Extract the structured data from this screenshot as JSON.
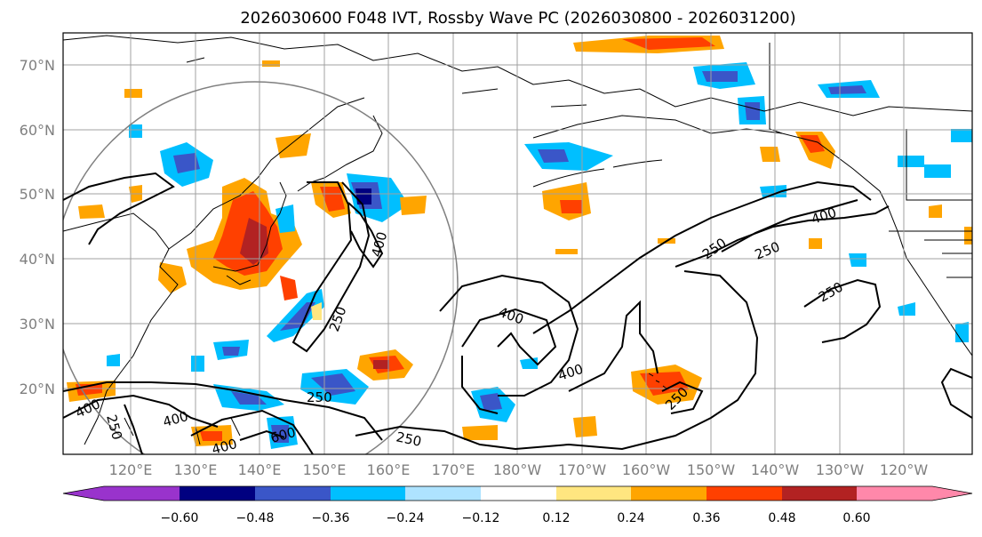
{
  "title": "2026030600 F048 IVT, Rossby Wave PC (2026030800 - 2026031200)",
  "lon_labels": [
    "120°E",
    "130°E",
    "140°E",
    "150°E",
    "160°E",
    "170°E",
    "180°W",
    "170°W",
    "160°W",
    "150°W",
    "140°W",
    "130°W",
    "120°W"
  ],
  "lat_labels": [
    "70°N",
    "60°N",
    "50°N",
    "40°N",
    "30°N",
    "20°N"
  ],
  "colors": {
    "levels": [
      {
        "name": "below -0.60",
        "hex": "#9933cc"
      },
      {
        "name": "-0.60 to -0.48",
        "hex": "#000080"
      },
      {
        "name": "-0.48 to -0.36",
        "hex": "#3a56c8"
      },
      {
        "name": "-0.36 to -0.24",
        "hex": "#00bfff"
      },
      {
        "name": "-0.24 to -0.12",
        "hex": "#aee3ff"
      },
      {
        "name": "-0.12 to 0.12",
        "hex": "#ffffff"
      },
      {
        "name": "0.12 to 0.24",
        "hex": "#ffe680"
      },
      {
        "name": "0.24 to 0.36",
        "hex": "#ffa500"
      },
      {
        "name": "0.36 to 0.48",
        "hex": "#ff4000"
      },
      {
        "name": "0.48 to 0.60",
        "hex": "#b22222"
      },
      {
        "name": "above 0.60",
        "hex": "#ff88aa"
      }
    ]
  },
  "colorbar": {
    "ticks": [
      "−0.60",
      "−0.48",
      "−0.36",
      "−0.24",
      "−0.12",
      "0.12",
      "0.24",
      "0.36",
      "0.48",
      "0.60"
    ]
  },
  "contour_labels": {
    "l250_a": "250",
    "l250_b": "250",
    "l250_c": "250",
    "l250_d": "250",
    "l250_e": "250",
    "l250_f": "250",
    "l250_g": "250",
    "l250_h": "250",
    "l400_a": "400",
    "l400_b": "400",
    "l400_c": "400",
    "l400_d": "400",
    "l400_e": "400",
    "l400_f": "400",
    "l400_g": "400",
    "l600_a": "600"
  }
}
